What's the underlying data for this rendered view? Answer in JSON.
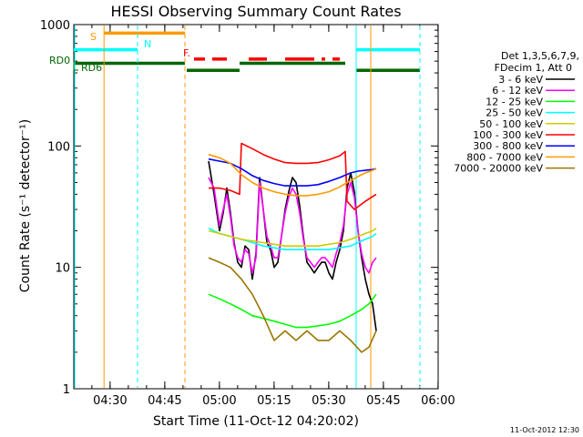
{
  "chart_data": {
    "type": "line",
    "title": "HESSI Observing Summary Count Rates",
    "xlabel": "Start Time (11-Oct-12 04:20:02)",
    "ylabel": "Count Rate (s⁻¹ detector⁻¹)",
    "x_axis_unit": "minutes after 04:20:02",
    "xlim": [
      0,
      100
    ],
    "ylim": [
      1,
      1000
    ],
    "y_scale": "log",
    "x_ticks": [
      {
        "value": 9.97,
        "label": "04:30"
      },
      {
        "value": 24.97,
        "label": "04:45"
      },
      {
        "value": 39.97,
        "label": "05:00"
      },
      {
        "value": 54.97,
        "label": "05:15"
      },
      {
        "value": 69.97,
        "label": "05:30"
      },
      {
        "value": 84.97,
        "label": "05:45"
      },
      {
        "value": 99.97,
        "label": "06:00"
      }
    ],
    "y_ticks": [
      {
        "value": 1,
        "label": "1"
      },
      {
        "value": 10,
        "label": "10"
      },
      {
        "value": 100,
        "label": "100"
      },
      {
        "value": 1000,
        "label": "1000"
      }
    ],
    "legend": {
      "placement": "right",
      "header": [
        "Det 1,3,5,6,7,9,",
        "FDecim 1, Att 0"
      ],
      "entries": [
        {
          "label": "3 - 6 keV",
          "color": "#000000"
        },
        {
          "label": "6 - 12 keV",
          "color": "#ff00ff"
        },
        {
          "label": "12 - 25 keV",
          "color": "#00ff00"
        },
        {
          "label": "25 - 50 keV",
          "color": "#00ffff"
        },
        {
          "label": "50 - 100 keV",
          "color": "#cccc00"
        },
        {
          "label": "100 - 300 keV",
          "color": "#ff0000"
        },
        {
          "label": "300 - 800 keV",
          "color": "#0000ff"
        },
        {
          "label": "800 - 7000 keV",
          "color": "#ff9900"
        },
        {
          "label": "7000 - 20000 keV",
          "color": "#997700"
        }
      ]
    },
    "series": [
      {
        "name": "3 - 6 keV",
        "color": "#000000",
        "x": [
          37,
          38.5,
          40,
          41,
          42,
          43,
          44,
          45,
          46,
          47,
          48,
          49,
          50,
          51,
          52,
          53,
          54,
          55,
          56,
          57,
          58,
          59,
          60,
          61,
          62,
          63,
          64,
          65,
          66,
          67,
          68,
          69,
          70,
          71,
          72,
          73,
          74,
          75,
          76,
          77,
          78,
          79,
          80,
          81,
          82,
          83
        ],
        "y": [
          75,
          40,
          20,
          28,
          45,
          28,
          16,
          11,
          10,
          15,
          14,
          8,
          13,
          55,
          30,
          16,
          14,
          10,
          11,
          18,
          30,
          42,
          55,
          50,
          32,
          18,
          11,
          10,
          9,
          10,
          11,
          11,
          9,
          8,
          11,
          14,
          20,
          45,
          60,
          42,
          20,
          12,
          8,
          6,
          5,
          3
        ]
      },
      {
        "name": "6 - 12 keV",
        "color": "#ff00ff",
        "x": [
          37,
          38.5,
          40,
          41,
          42,
          43,
          44,
          45,
          46,
          47,
          48,
          49,
          50,
          51,
          52,
          53,
          54,
          55,
          56,
          57,
          58,
          59,
          60,
          61,
          62,
          63,
          64,
          65,
          66,
          67,
          68,
          69,
          70,
          71,
          72,
          73,
          74,
          75,
          76,
          77,
          78,
          79,
          80,
          81,
          82,
          83
        ],
        "y": [
          55,
          45,
          22,
          30,
          40,
          26,
          15,
          12,
          11,
          14,
          13,
          9,
          12,
          50,
          30,
          18,
          15,
          12,
          12,
          18,
          28,
          38,
          45,
          40,
          28,
          17,
          12,
          11,
          10,
          11,
          12,
          12,
          11,
          10,
          13,
          16,
          22,
          40,
          50,
          38,
          20,
          13,
          10,
          9,
          11,
          12
        ]
      },
      {
        "name": "12 - 25 keV",
        "color": "#00ff00",
        "x": [
          37,
          40,
          43,
          46,
          49,
          52,
          55,
          58,
          61,
          64,
          67,
          70,
          73,
          76,
          79,
          81,
          83
        ],
        "y": [
          6,
          5.5,
          5,
          4.5,
          4,
          3.8,
          3.6,
          3.4,
          3.2,
          3.2,
          3.3,
          3.4,
          3.6,
          4,
          4.5,
          5,
          6
        ]
      },
      {
        "name": "25 - 50 keV",
        "color": "#00ffff",
        "x": [
          37,
          40,
          43,
          46,
          49,
          52,
          55,
          58,
          61,
          64,
          67,
          70,
          73,
          76,
          78,
          80,
          82,
          83
        ],
        "y": [
          21,
          19,
          18,
          17,
          16,
          15,
          14.5,
          14,
          14,
          14,
          14,
          14,
          14.5,
          15,
          16,
          17,
          18,
          19
        ]
      },
      {
        "name": "50 - 100 keV",
        "color": "#cccc00",
        "x": [
          37,
          40,
          43,
          46,
          49,
          52,
          55,
          58,
          61,
          64,
          67,
          70,
          73,
          76,
          78,
          80,
          82,
          83
        ],
        "y": [
          20,
          19,
          18,
          17,
          16.5,
          16,
          15.5,
          15,
          15,
          15,
          15,
          15.5,
          16,
          17,
          18,
          19,
          20,
          21
        ]
      },
      {
        "name": "100 - 300 keV",
        "color": "#ff0000",
        "x": [
          37,
          40,
          43,
          45.5,
          46,
          49,
          52,
          55,
          58,
          61,
          64,
          67,
          70,
          73,
          74.5,
          75,
          77,
          80,
          83
        ],
        "y": [
          45,
          45,
          43,
          40,
          105,
          95,
          85,
          78,
          73,
          72,
          72,
          73,
          77,
          83,
          90,
          35,
          30,
          35,
          40
        ]
      },
      {
        "name": "300 - 800 keV",
        "color": "#0000ff",
        "x": [
          37,
          40,
          43,
          46,
          49,
          52,
          55,
          58,
          61,
          64,
          67,
          70,
          73,
          76,
          78,
          80,
          82,
          83
        ],
        "y": [
          78,
          75,
          72,
          65,
          57,
          52,
          49,
          47,
          47,
          47,
          48,
          51,
          55,
          60,
          62,
          63,
          64,
          65
        ]
      },
      {
        "name": "800 - 7000 keV",
        "color": "#ff9900",
        "x": [
          37,
          40,
          43,
          46,
          49,
          52,
          55,
          58,
          61,
          64,
          67,
          70,
          73,
          76,
          78,
          80,
          82,
          83
        ],
        "y": [
          85,
          80,
          72,
          58,
          50,
          45,
          42,
          40,
          39,
          39,
          40,
          42,
          46,
          52,
          56,
          60,
          63,
          65
        ]
      },
      {
        "name": "7000 - 20000 keV",
        "color": "#997700",
        "x": [
          37,
          40,
          43,
          46,
          49,
          52,
          55,
          58,
          61,
          64,
          67,
          70,
          73,
          76,
          79,
          81,
          83
        ],
        "y": [
          12,
          11,
          10,
          8,
          6,
          4,
          2.5,
          3,
          2.5,
          3,
          2.5,
          2.5,
          3,
          2.5,
          2,
          2.2,
          3
        ]
      }
    ],
    "annotations": {
      "timestamp": "11-Oct-2012 12:30",
      "flag_labels": {
        "saa": "S",
        "night": "N",
        "flare": "F.",
        "rd0": "RD0",
        "rd6": "RD6"
      },
      "vertical_lines": [
        {
          "x": 8.3,
          "color": "#ff9900",
          "style": "solid"
        },
        {
          "x": 17.5,
          "color": "#00ffff",
          "style": "dashed"
        },
        {
          "x": 30.5,
          "color": "#ff9900",
          "style": "dashed"
        },
        {
          "x": 77.5,
          "color": "#00ffff",
          "style": "solid"
        },
        {
          "x": 81.5,
          "color": "#ff9900",
          "style": "solid"
        },
        {
          "x": 95,
          "color": "#00ffff",
          "style": "dashed"
        }
      ],
      "flag_bars": [
        {
          "name": "saa",
          "color": "#ff9900",
          "y": 850,
          "segments": [
            [
              8.3,
              30.5
            ]
          ]
        },
        {
          "name": "night",
          "color": "#00ffff",
          "y": 620,
          "segments": [
            [
              0,
              17.5
            ],
            [
              77.5,
              95
            ]
          ]
        },
        {
          "name": "flare",
          "color": "#ff0000",
          "y": 520,
          "segments": [
            [
              33,
              36
            ],
            [
              38,
              42
            ],
            [
              48,
              53
            ],
            [
              58,
              66
            ],
            [
              68,
              69
            ],
            [
              71,
              73
            ]
          ]
        },
        {
          "name": "rd0",
          "color": "#006600",
          "y": 480,
          "segments": [
            [
              0,
              30.5
            ],
            [
              45.5,
              74.5
            ]
          ]
        },
        {
          "name": "rd6",
          "color": "#006600",
          "y": 420,
          "segments": [
            [
              31,
              45.5
            ],
            [
              77.5,
              95
            ]
          ]
        }
      ]
    }
  }
}
